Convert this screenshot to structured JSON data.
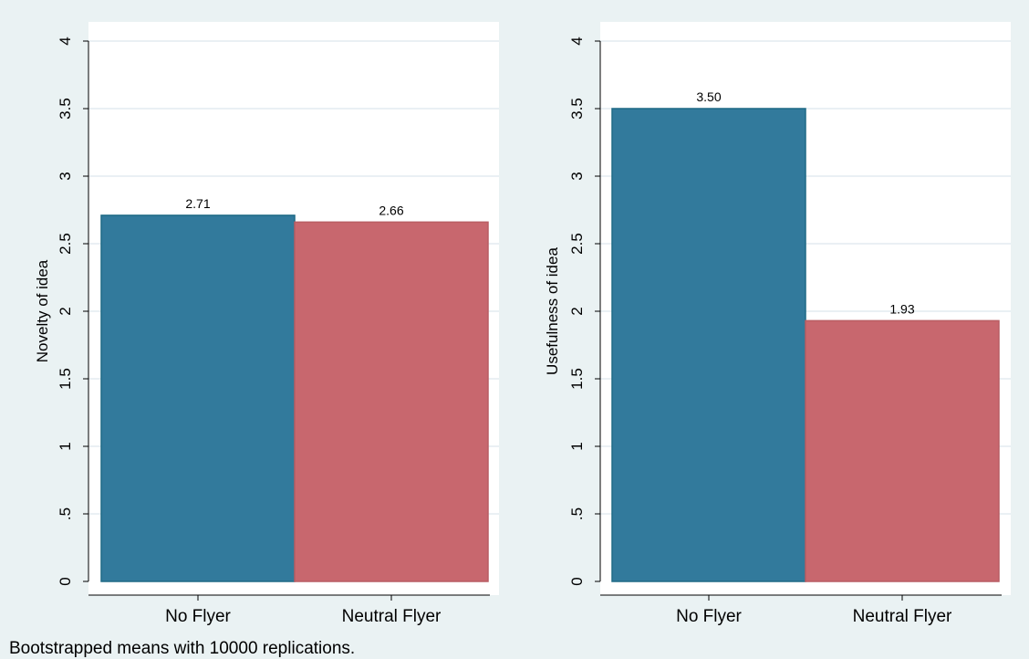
{
  "chart_data": [
    {
      "type": "bar",
      "categories": [
        "No Flyer",
        "Neutral Flyer"
      ],
      "values": [
        2.71,
        2.66
      ],
      "value_labels": [
        "2.71",
        "2.66"
      ],
      "colors": [
        "#327a9c",
        "#c8676e"
      ],
      "ylabel": "Novelty of idea",
      "ylim": [
        0,
        4
      ],
      "yticks": [
        0,
        0.5,
        1,
        1.5,
        2,
        2.5,
        3,
        3.5,
        4
      ],
      "ytick_labels": [
        "0",
        ".5",
        "1",
        "1.5",
        "2",
        "2.5",
        "3",
        "3.5",
        "4"
      ],
      "grid": true
    },
    {
      "type": "bar",
      "categories": [
        "No Flyer",
        "Neutral Flyer"
      ],
      "values": [
        3.5,
        1.93
      ],
      "value_labels": [
        "3.50",
        "1.93"
      ],
      "colors": [
        "#327a9c",
        "#c8676e"
      ],
      "ylabel": "Usefulness of idea",
      "ylim": [
        0,
        4
      ],
      "yticks": [
        0,
        0.5,
        1,
        1.5,
        2,
        2.5,
        3,
        3.5,
        4
      ],
      "ytick_labels": [
        "0",
        ".5",
        "1",
        "1.5",
        "2",
        "2.5",
        "3",
        "3.5",
        "4"
      ],
      "grid": true
    }
  ],
  "note": "Bootstrapped means with 10000 replications."
}
